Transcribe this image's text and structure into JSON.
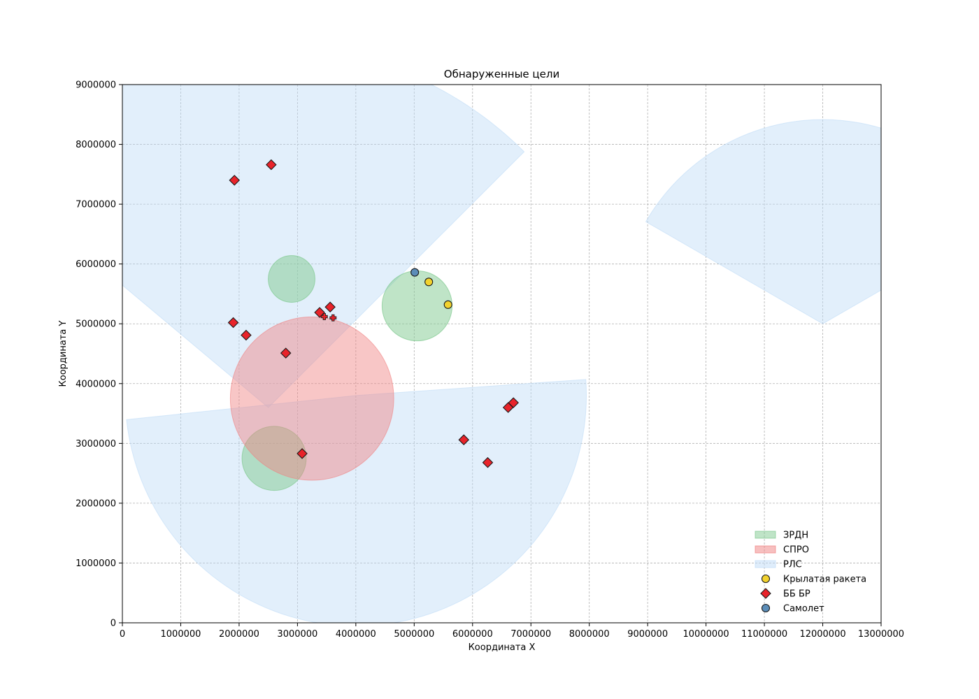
{
  "chart_data": {
    "type": "scatter",
    "title": "Обнаруженные цели",
    "xlabel": "Координата X",
    "ylabel": "Координата Y",
    "xlim": [
      0,
      13000000
    ],
    "ylim": [
      0,
      9000000
    ],
    "xticks": [
      "0",
      "1000000",
      "2000000",
      "3000000",
      "4000000",
      "5000000",
      "6000000",
      "7000000",
      "8000000",
      "9000000",
      "10000000",
      "11000000",
      "12000000",
      "13000000"
    ],
    "yticks": [
      "0",
      "1000000",
      "2000000",
      "3000000",
      "4000000",
      "5000000",
      "6000000",
      "7000000",
      "8000000",
      "9000000"
    ],
    "grid": true,
    "legend_position": "lower-right",
    "legend": [
      {
        "label": "ЗРДН",
        "kind": "patch",
        "color": "#7fc98f"
      },
      {
        "label": "СПРО",
        "kind": "patch",
        "color": "#f08080"
      },
      {
        "label": "РЛС",
        "kind": "patch",
        "color": "#bfdcf7"
      },
      {
        "label": "Крылатая ракета",
        "kind": "circle",
        "color": "#f2d22e"
      },
      {
        "label": "ББ БР",
        "kind": "diamond",
        "color": "#e8232a"
      },
      {
        "label": "Самолет",
        "kind": "circle",
        "color": "#5b8db8"
      }
    ],
    "zones": {
      "zrdn": [
        {
          "x": 2900000,
          "y": 5750000,
          "r": 400000
        },
        {
          "x": 5050000,
          "y": 5300000,
          "r": 600000
        },
        {
          "x": 2600000,
          "y": 2750000,
          "r": 550000
        }
      ],
      "spro": [
        {
          "x": 3250000,
          "y": 3750000,
          "r": 1400000
        }
      ],
      "rls": [
        {
          "x": 2500000,
          "y": 3600000,
          "r": 6200000,
          "start_deg": 45,
          "end_deg": 140
        },
        {
          "x": 4000000,
          "y": 3800000,
          "r": 3950000,
          "start_deg": 186,
          "end_deg": 364
        },
        {
          "x": 12000000,
          "y": 5000000,
          "r": 3500000,
          "start_deg": 30,
          "end_deg": 150
        }
      ]
    },
    "series": [
      {
        "name": "Крылатая ракета",
        "marker": "circle",
        "color": "#f2d22e",
        "points": [
          {
            "x": 5250000,
            "y": 5700000
          },
          {
            "x": 5580000,
            "y": 5320000
          }
        ]
      },
      {
        "name": "ББ БР",
        "marker": "diamond",
        "color": "#e8232a",
        "points": [
          {
            "x": 1920000,
            "y": 7400000
          },
          {
            "x": 2550000,
            "y": 7660000
          },
          {
            "x": 1900000,
            "y": 5020000
          },
          {
            "x": 2120000,
            "y": 4810000
          },
          {
            "x": 2800000,
            "y": 4510000
          },
          {
            "x": 3380000,
            "y": 5190000
          },
          {
            "x": 3560000,
            "y": 5280000
          },
          {
            "x": 3080000,
            "y": 2830000
          },
          {
            "x": 5850000,
            "y": 3060000
          },
          {
            "x": 6260000,
            "y": 2680000
          },
          {
            "x": 6610000,
            "y": 3600000
          },
          {
            "x": 6700000,
            "y": 3680000
          }
        ]
      },
      {
        "name": "ББ БР",
        "marker": "plus",
        "color": "#e8232a",
        "points": [
          {
            "x": 3460000,
            "y": 5120000
          },
          {
            "x": 3610000,
            "y": 5100000
          }
        ]
      },
      {
        "name": "Самолет",
        "marker": "circle",
        "color": "#5b8db8",
        "points": [
          {
            "x": 5010000,
            "y": 5860000
          }
        ]
      }
    ]
  }
}
